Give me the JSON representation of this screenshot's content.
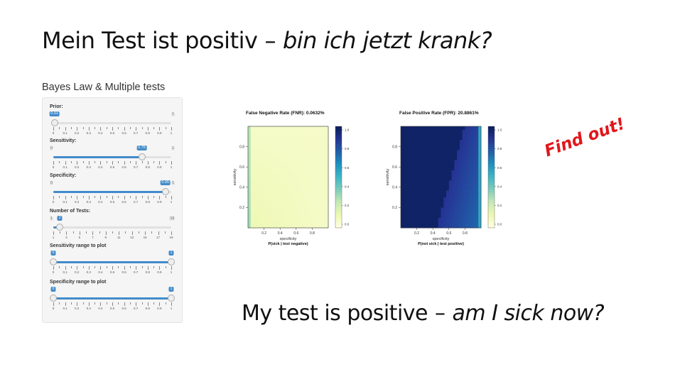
{
  "slide": {
    "title_de_plain": "Mein Test ist positiv",
    "title_de_dash": "–",
    "title_de_italic": "bin ich jetzt krank?",
    "title_en_plain": "My test is positive",
    "title_en_dash": "–",
    "title_en_italic": "am I sick now?",
    "stamp": "Find out!"
  },
  "app": {
    "title": "Bayes Law & Multiple tests",
    "sliders": [
      {
        "label": "Prior:",
        "min": "0",
        "max": "1",
        "value": "0.01",
        "value_frac": 0.01,
        "ticks": [
          "0",
          "0.1",
          "0.2",
          "0.3",
          "0.4",
          "0.5",
          "0.6",
          "0.7",
          "0.8",
          "0.9",
          "1"
        ]
      },
      {
        "label": "Sensitivity:",
        "min": "0",
        "max": "1",
        "value": "0.75",
        "value_frac": 0.75,
        "ticks": [
          "0",
          "0.1",
          "0.2",
          "0.3",
          "0.4",
          "0.5",
          "0.6",
          "0.7",
          "0.8",
          "0.9",
          "1"
        ]
      },
      {
        "label": "Specificity:",
        "min": "0",
        "max": "1",
        "value": "0.95",
        "value_frac": 0.95,
        "ticks": [
          "0",
          "0.1",
          "0.2",
          "0.3",
          "0.4",
          "0.5",
          "0.6",
          "0.7",
          "0.8",
          "0.9",
          "1"
        ]
      },
      {
        "label": "Number of Tests:",
        "min": "1",
        "max": "19",
        "value": "2",
        "value_frac": 0.0556,
        "ticks": [
          "1",
          "3",
          "5",
          "7",
          "9",
          "11",
          "13",
          "15",
          "17",
          "19"
        ]
      },
      {
        "label": "Sensitivity range to plot",
        "min": "",
        "max": "",
        "value": "0",
        "value2": "1",
        "value_frac": 0,
        "value2_frac": 1,
        "ticks": [
          "0",
          "0.1",
          "0.2",
          "0.3",
          "0.4",
          "0.5",
          "0.6",
          "0.7",
          "0.8",
          "0.9",
          "1"
        ]
      },
      {
        "label": "Specificity range to plot",
        "min": "",
        "max": "",
        "value": "0",
        "value2": "1",
        "value_frac": 0,
        "value2_frac": 1,
        "ticks": [
          "0",
          "0.1",
          "0.2",
          "0.3",
          "0.4",
          "0.5",
          "0.6",
          "0.7",
          "0.8",
          "0.9",
          "1"
        ]
      }
    ]
  },
  "chart_data": [
    {
      "type": "heatmap",
      "title": "False Negative Rate (FNR): 0.0632%",
      "xlabel": "specificity",
      "ylabel": "sensitivity",
      "caption": "P(sick | test negative)",
      "xticks": [
        "0.2",
        "0.4",
        "0.6",
        "0.8"
      ],
      "yticks": [
        "0.2",
        "0.4",
        "0.6",
        "0.8"
      ],
      "colorbar_ticks": [
        "0.0",
        "0.2",
        "0.4",
        "0.6",
        "0.8",
        "1.0"
      ],
      "xlim": [
        0,
        1
      ],
      "ylim": [
        0,
        1
      ],
      "colorscale": [
        "#ffffe5",
        "#edf8b1",
        "#c7e9b4",
        "#7fcdbb",
        "#41b6c4",
        "#1d91c0",
        "#225ea8",
        "#253494",
        "#081d58"
      ],
      "dominant_value": 0.05
    },
    {
      "type": "heatmap",
      "title": "False Positive Rate (FPR): 20.8861%",
      "xlabel": "specificity",
      "ylabel": "sensitivity",
      "caption": "P(not sick | test positive)",
      "xticks": [
        "0.2",
        "0.4",
        "0.6",
        "0.8"
      ],
      "yticks": [
        "0.2",
        "0.4",
        "0.6",
        "0.8"
      ],
      "colorbar_ticks": [
        "0.0",
        "0.2",
        "0.4",
        "0.6",
        "0.8",
        "1.0"
      ],
      "xlim": [
        0,
        1
      ],
      "ylim": [
        0,
        1
      ],
      "colorscale": [
        "#ffffe5",
        "#edf8b1",
        "#c7e9b4",
        "#7fcdbb",
        "#41b6c4",
        "#1d91c0",
        "#225ea8",
        "#253494",
        "#081d58"
      ],
      "dominant_value": 0.95
    }
  ]
}
